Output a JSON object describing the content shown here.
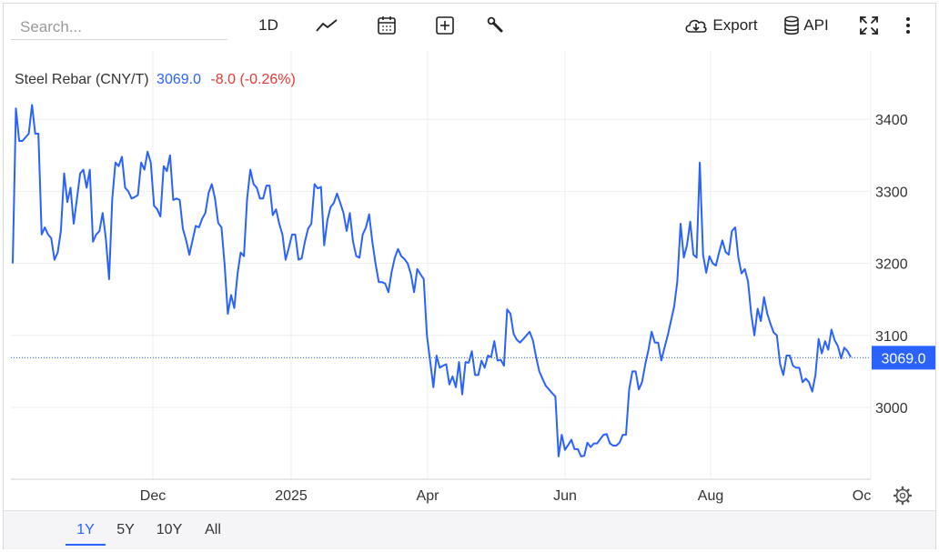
{
  "search": {
    "placeholder": "Search..."
  },
  "toolbar": {
    "interval_label": "1D",
    "chart_type_icon": "line-chart-icon",
    "calendar_icon": "calendar-icon",
    "indicator_icon": "plus-square-icon",
    "settings_icon": "wrench-icon",
    "export_label": "Export",
    "export_icon": "cloud-download-icon",
    "api_label": "API",
    "api_icon": "database-icon",
    "fullscreen_icon": "fullscreen-icon",
    "more_icon": "more-vertical-icon"
  },
  "legend": {
    "name": "Steel Rebar (CNY/T)",
    "value": "3069.0",
    "change": "-8.0 (-0.26%)"
  },
  "price_tag": "3069.0",
  "ranges": [
    {
      "label": "1Y",
      "active": true
    },
    {
      "label": "5Y",
      "active": false
    },
    {
      "label": "10Y",
      "active": false
    },
    {
      "label": "All",
      "active": false
    }
  ],
  "colors": {
    "line": "#2962ff",
    "positive": "#2962ff",
    "negative": "#e53935",
    "grid": "#eeeeee"
  },
  "chart_data": {
    "type": "line",
    "series": [
      {
        "values": [
          3200,
          3415,
          3370,
          3370,
          3375,
          3380,
          3420,
          3380,
          3380,
          3240,
          3250,
          3240,
          3235,
          3205,
          3215,
          3245,
          3325,
          3285,
          3305,
          3255,
          3290,
          3325,
          3330,
          3305,
          3330,
          3230,
          3240,
          3245,
          3270,
          3235,
          3178,
          3290,
          3340,
          3335,
          3348,
          3305,
          3300,
          3290,
          3292,
          3295,
          3340,
          3330,
          3355,
          3340,
          3280,
          3275,
          3265,
          3335,
          3328,
          3350,
          3288,
          3290,
          3288,
          3248,
          3232,
          3212,
          3232,
          3252,
          3250,
          3262,
          3270,
          3298,
          3310,
          3290,
          3256,
          3250,
          3198,
          3130,
          3156,
          3138,
          3185,
          3215,
          3210,
          3290,
          3330,
          3310,
          3305,
          3290,
          3290,
          3308,
          3308,
          3267,
          3275,
          3255,
          3240,
          3205,
          3222,
          3240,
          3240,
          3205,
          3207,
          3230,
          3248,
          3255,
          3310,
          3304,
          3306,
          3225,
          3260,
          3278,
          3284,
          3297,
          3284,
          3270,
          3245,
          3270,
          3230,
          3210,
          3208,
          3240,
          3250,
          3268,
          3230,
          3200,
          3174,
          3174,
          3172,
          3160,
          3188,
          3208,
          3220,
          3210,
          3206,
          3200,
          3185,
          3160,
          3192,
          3185,
          3178,
          3100,
          3065,
          3028,
          3072,
          3055,
          3058,
          3060,
          3032,
          3043,
          3028,
          3063,
          3018,
          3063,
          3062,
          3078,
          3045,
          3045,
          3065,
          3055,
          3072,
          3070,
          3092,
          3065,
          3066,
          3058,
          3136,
          3130,
          3102,
          3094,
          3090,
          3095,
          3100,
          3105,
          3093,
          3070,
          3050,
          3040,
          3030,
          3025,
          3020,
          3015,
          2932,
          2962,
          2941,
          2948,
          2955,
          2942,
          2942,
          2932,
          2933,
          2951,
          2945,
          2950,
          2950,
          2956,
          2962,
          2963,
          2950,
          2947,
          2947,
          2951,
          2962,
          2962,
          3025,
          3050,
          3050,
          3025,
          3035,
          3060,
          3080,
          3105,
          3090,
          3090,
          3065,
          3083,
          3100,
          3120,
          3140,
          3175,
          3255,
          3208,
          3225,
          3258,
          3212,
          3208,
          3340,
          3212,
          3187,
          3210,
          3200,
          3197,
          3215,
          3232,
          3216,
          3212,
          3245,
          3250,
          3208,
          3186,
          3192,
          3175,
          3130,
          3100,
          3137,
          3120,
          3153,
          3130,
          3116,
          3104,
          3100,
          3060,
          3045,
          3072,
          3072,
          3058,
          3055,
          3055,
          3035,
          3040,
          3035,
          3022,
          3045,
          3095,
          3075,
          3092,
          3080,
          3108,
          3093,
          3085,
          3068,
          3083,
          3078,
          3070
        ],
        "x_start": "Oct 2024",
        "x_end": "Sep 2025"
      }
    ],
    "x_ticks": [
      "Dec",
      "2025",
      "Apr",
      "Jun",
      "Aug",
      "Oc"
    ],
    "y_ticks": [
      3000,
      3100,
      3200,
      3300,
      3400
    ],
    "ylim": [
      2900,
      3500
    ],
    "last_value": 3069.0,
    "grid": true,
    "title": "Steel Rebar (CNY/T)"
  }
}
